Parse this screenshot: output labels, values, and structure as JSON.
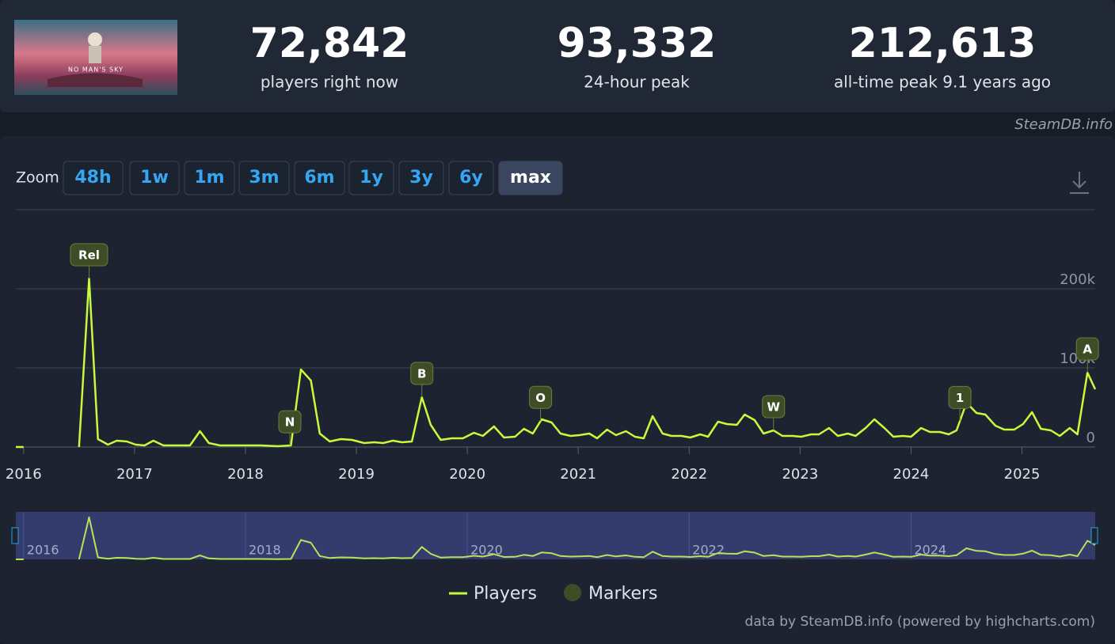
{
  "header": {
    "game_title": "NO MAN'S SKY",
    "stats": [
      {
        "value": "72,842",
        "label": "players right now"
      },
      {
        "value": "93,332",
        "label": "24-hour peak"
      },
      {
        "value": "212,613",
        "label": "all-time peak 9.1 years ago"
      }
    ],
    "source": "SteamDB.info"
  },
  "zoom": {
    "label": "Zoom",
    "buttons": [
      "48h",
      "1w",
      "1m",
      "3m",
      "6m",
      "1y",
      "3y",
      "6y",
      "max"
    ],
    "active_index": 8
  },
  "chart_data": {
    "type": "line",
    "x": [
      2015.93,
      2016.0,
      2016.25,
      2016.5,
      2016.59,
      2016.67,
      2016.76,
      2016.84,
      2016.93,
      2017.01,
      2017.09,
      2017.17,
      2017.26,
      2017.36,
      2017.5,
      2017.59,
      2017.67,
      2017.77,
      2017.93,
      2018.14,
      2018.29,
      2018.41,
      2018.5,
      2018.59,
      2018.67,
      2018.76,
      2018.86,
      2018.96,
      2019.07,
      2019.16,
      2019.24,
      2019.33,
      2019.41,
      2019.5,
      2019.59,
      2019.67,
      2019.76,
      2019.86,
      2019.96,
      2020.06,
      2020.14,
      2020.24,
      2020.33,
      2020.43,
      2020.51,
      2020.59,
      2020.67,
      2020.76,
      2020.84,
      2020.93,
      2021.01,
      2021.1,
      2021.17,
      2021.26,
      2021.34,
      2021.43,
      2021.51,
      2021.59,
      2021.67,
      2021.76,
      2021.84,
      2021.93,
      2022.01,
      2022.1,
      2022.17,
      2022.26,
      2022.34,
      2022.43,
      2022.5,
      2022.59,
      2022.67,
      2022.76,
      2022.84,
      2022.93,
      2023.01,
      2023.1,
      2023.17,
      2023.26,
      2023.34,
      2023.43,
      2023.5,
      2023.59,
      2023.67,
      2023.76,
      2023.84,
      2023.93,
      2024.0,
      2024.09,
      2024.17,
      2024.26,
      2024.34,
      2024.41,
      2024.5,
      2024.59,
      2024.67,
      2024.76,
      2024.84,
      2024.93,
      2025.01,
      2025.09,
      2025.17,
      2025.26,
      2025.34,
      2025.43,
      2025.5,
      2025.59,
      2025.66
    ],
    "series": [
      {
        "name": "Players",
        "color": "#c8fa3c",
        "values": [
          0,
          0,
          null,
          0,
          213000,
          10000,
          3000,
          8000,
          7000,
          3000,
          2000,
          8000,
          2000,
          2000,
          2000,
          20000,
          5000,
          2000,
          2000,
          2000,
          1000,
          2000,
          98000,
          84000,
          17000,
          7000,
          10000,
          9000,
          5000,
          6000,
          5000,
          8000,
          6000,
          7000,
          63000,
          28000,
          9000,
          11000,
          11000,
          18000,
          14000,
          26000,
          12000,
          13000,
          23000,
          17000,
          35000,
          31000,
          17000,
          14000,
          15000,
          17000,
          11000,
          22000,
          15000,
          20000,
          13000,
          11000,
          39000,
          17000,
          14000,
          14000,
          12000,
          16000,
          13000,
          32000,
          29000,
          28000,
          41000,
          34000,
          17000,
          21000,
          14000,
          14000,
          13000,
          16000,
          16000,
          24000,
          14000,
          17000,
          14000,
          24000,
          35000,
          24000,
          13000,
          14000,
          13000,
          24000,
          19000,
          19000,
          16000,
          21000,
          56000,
          43000,
          41000,
          27000,
          22000,
          22000,
          29000,
          44000,
          23000,
          21000,
          14000,
          24000,
          16000,
          94000,
          73000
        ]
      }
    ],
    "markers": {
      "name": "Markers",
      "color": "#3f4d27",
      "points": [
        {
          "x": 2016.59,
          "label": "Rel"
        },
        {
          "x": 2018.4,
          "label": "N"
        },
        {
          "x": 2019.59,
          "label": "B"
        },
        {
          "x": 2020.66,
          "label": "O"
        },
        {
          "x": 2022.76,
          "label": "W"
        },
        {
          "x": 2024.44,
          "label": "1"
        },
        {
          "x": 2025.59,
          "label": "A"
        }
      ]
    },
    "xlim": [
      2015.93,
      2025.66
    ],
    "xticks": [
      2016,
      2017,
      2018,
      2019,
      2020,
      2021,
      2022,
      2023,
      2024,
      2025
    ],
    "ylim": [
      0,
      300000
    ],
    "yticks": [
      {
        "value": 0,
        "label": "0"
      },
      {
        "value": 100000,
        "label": "100k"
      },
      {
        "value": 200000,
        "label": "200k"
      }
    ],
    "grid": true,
    "navigator_ticks": [
      2016,
      2018,
      2020,
      2022,
      2024
    ],
    "navigator_ylim": [
      0,
      240000
    ],
    "credit": "data by SteamDB.info (powered by highcharts.com)"
  }
}
